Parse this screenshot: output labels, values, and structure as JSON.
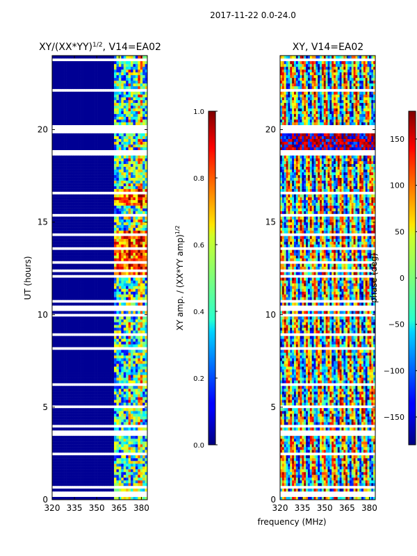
{
  "figure_title": "2017-11-22 0.0-24.0",
  "shared_xlabel": "frequency (MHz)",
  "chart_data": [
    {
      "type": "heatmap",
      "title": "XY/(XX*YY)",
      "title_exponent": "1/2",
      "title_suffix": ", V14=EA02",
      "xlabel": "",
      "ylabel": "UT (hours)",
      "x_ticks": [
        "320",
        "335",
        "350",
        "365",
        "380"
      ],
      "x_tick_values": [
        320,
        335,
        350,
        365,
        380
      ],
      "xlim": [
        320,
        384
      ],
      "y_ticks": [
        "0",
        "5",
        "10",
        "15",
        "20"
      ],
      "y_tick_values": [
        0,
        5,
        10,
        15,
        20
      ],
      "ylim": [
        0,
        24
      ],
      "flagged_band_mhz": [
        320,
        361
      ],
      "active_band_mhz": [
        361,
        384
      ],
      "colorbar": {
        "label": "XY amp. / (XX*YY amp)",
        "label_exponent": "1/2",
        "range": [
          0.0,
          1.0
        ],
        "ticks": [
          "0.0",
          "0.2",
          "0.4",
          "0.6",
          "0.8",
          "1.0"
        ],
        "tick_values": [
          0.0,
          0.2,
          0.4,
          0.6,
          0.8,
          1.0
        ],
        "colormap": "jet"
      }
    },
    {
      "type": "heatmap",
      "title": "XY, V14=EA02",
      "xlabel": "frequency (MHz)",
      "ylabel": "",
      "x_ticks": [
        "320",
        "335",
        "350",
        "365",
        "380"
      ],
      "x_tick_values": [
        320,
        335,
        350,
        365,
        380
      ],
      "xlim": [
        320,
        384
      ],
      "y_ticks": [
        "0",
        "5",
        "10",
        "15",
        "20"
      ],
      "y_tick_values": [
        0,
        5,
        10,
        15,
        20
      ],
      "ylim": [
        0,
        24
      ],
      "colorbar": {
        "label": "phase (deg)",
        "range": [
          -180,
          180
        ],
        "ticks": [
          "−150",
          "−100",
          "−50",
          "0",
          "50",
          "100",
          "150"
        ],
        "tick_values": [
          -150,
          -100,
          -50,
          0,
          50,
          100,
          150
        ],
        "colormap": "jet"
      }
    }
  ]
}
